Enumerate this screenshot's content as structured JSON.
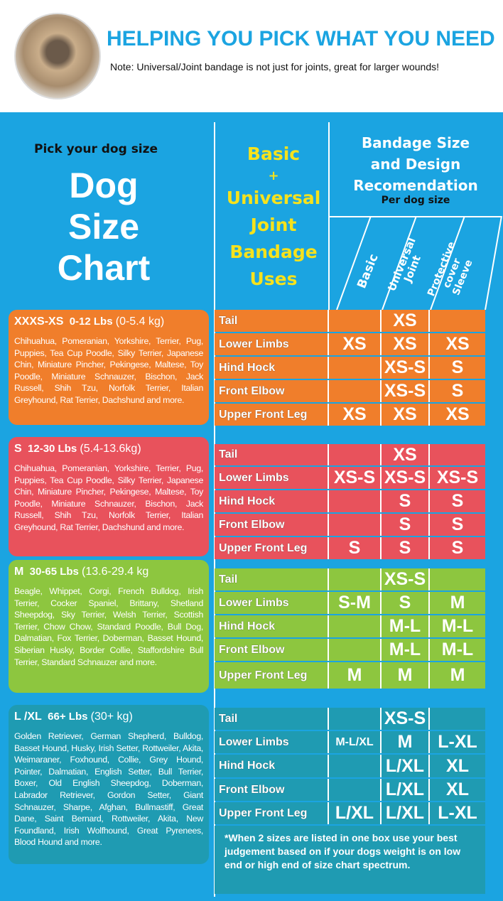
{
  "header": {
    "title": "HELPING YOU PICK WHAT YOU NEED",
    "note": "Note: Universal/Joint bandage is not just for joints, great for larger wounds!"
  },
  "left": {
    "pick": "Pick your dog size",
    "title_lines": [
      "Dog",
      "Size",
      "Chart"
    ]
  },
  "middle_header": [
    "Basic",
    "+",
    "Universal",
    "Joint",
    "Bandage",
    "Uses"
  ],
  "right_header": {
    "lines": [
      "Bandage Size",
      "and Design",
      "Recomendation"
    ],
    "sub": "Per dog size",
    "columns": [
      "Basic",
      "Universal Joint",
      "Protective cover Sleeve"
    ]
  },
  "colors": {
    "background": "#1ba4e1",
    "xs": "#f07e2b",
    "s": "#e8525c",
    "m": "#8dc63f",
    "l": "#1f9bb2",
    "heading": "#f6e21c"
  },
  "groups": [
    {
      "size": "XXXS-XS",
      "lbs": "0-12 Lbs",
      "kg": "(0-5.4 kg)",
      "breeds": "Chihuahua, Pomeranian, Yorkshire, Terrier, Pug, Puppies, Tea Cup Poodle, Silky Terrier, Japanese Chin, Miniature Pincher, Pekingese, Maltese, Toy Poodle, Miniature Schnauzer, Bischon, Jack Russell, Shih Tzu, Norfolk Terrier, Italian Greyhound, Rat Terrier, Dachshund and more.",
      "rows": [
        [
          "Tail",
          "",
          "XS",
          ""
        ],
        [
          "Lower Limbs",
          "XS",
          "XS",
          "XS"
        ],
        [
          "Hind Hock",
          "",
          "XS-S",
          "S"
        ],
        [
          "Front Elbow",
          "",
          "XS-S",
          "S"
        ],
        [
          "Upper Front Leg",
          "XS",
          "XS",
          "XS"
        ]
      ]
    },
    {
      "size": "S",
      "lbs": "12-30 Lbs",
      "kg": "(5.4-13.6kg)",
      "breeds": "Chihuahua, Pomeranian, Yorkshire, Terrier, Pug, Puppies, Tea Cup Poodle, Silky Terrier, Japanese Chin, Miniature Pincher, Pekingese, Maltese, Toy Poodle, Miniature Schnauzer, Bischon, Jack Russell, Shih Tzu, Norfolk Terrier, Italian Greyhound, Rat Terrier, Dachshund and more.",
      "rows": [
        [
          "Tail",
          "",
          "XS",
          ""
        ],
        [
          "Lower Limbs",
          "XS-S",
          "XS-S",
          "XS-S"
        ],
        [
          "Hind Hock",
          "",
          "S",
          "S"
        ],
        [
          "Front Elbow",
          "",
          "S",
          "S"
        ],
        [
          "Upper Front Leg",
          "S",
          "S",
          "S"
        ]
      ]
    },
    {
      "size": "M",
      "lbs": "30-65 Lbs",
      "kg": "(13.6-29.4 kg",
      "breeds": "Beagle, Whippet, Corgi, French Bulldog, Irish Terrier, Cocker Spaniel, Brittany, Shetland Sheepdog, Sky Terrier, Welsh Terrier, Scottish Terrier, Chow Chow, Standard Poodle, Bull Dog, Dalmatian, Fox Terrier, Doberman, Basset Hound, Siberian Husky, Border Collie, Staffordshire Bull Terrier, Standard Schnauzer and more.",
      "rows": [
        [
          "Tail",
          "",
          "XS-S",
          ""
        ],
        [
          "Lower Limbs",
          "S-M",
          "S",
          "M"
        ],
        [
          "Hind Hock",
          "",
          "M-L",
          "M-L"
        ],
        [
          "Front Elbow",
          "",
          "M-L",
          "M-L"
        ],
        [
          "Upper Front Leg",
          "M",
          "M",
          "M"
        ]
      ]
    },
    {
      "size": "L /XL",
      "lbs": "66+ Lbs",
      "kg": "(30+ kg)",
      "breeds": "Golden Retriever, German Shepherd, Bulldog, Basset Hound, Husky, Irish Setter, Rottweiler, Akita, Weimaraner, Foxhound, Collie, Grey Hound, Pointer, Dalmatian, English Setter, Bull Terrier, Boxer, Old English Sheepdog, Doberman, Labrador Retriever, Gordon Setter, Giant Schnauzer, Sharpe, Afghan, Bullmastiff, Great Dane, Saint Bernard, Rottweiler, Akita, New Foundland, Irish Wolfhound, Great Pyrenees, Blood Hound and more.",
      "rows": [
        [
          "Tail",
          "",
          "XS-S",
          ""
        ],
        [
          "Lower Limbs",
          "M-L/XL",
          "M",
          "L-XL"
        ],
        [
          "Hind Hock",
          "",
          "L/XL",
          "XL"
        ],
        [
          "Front Elbow",
          "",
          "L/XL",
          "XL"
        ],
        [
          "Upper Front Leg",
          "L/XL",
          "L/XL",
          "L-XL"
        ]
      ]
    }
  ],
  "footnote": "*When 2 sizes are listed in one box use your best judgement based on if your dogs weight is on low end or high end of size chart spectrum."
}
